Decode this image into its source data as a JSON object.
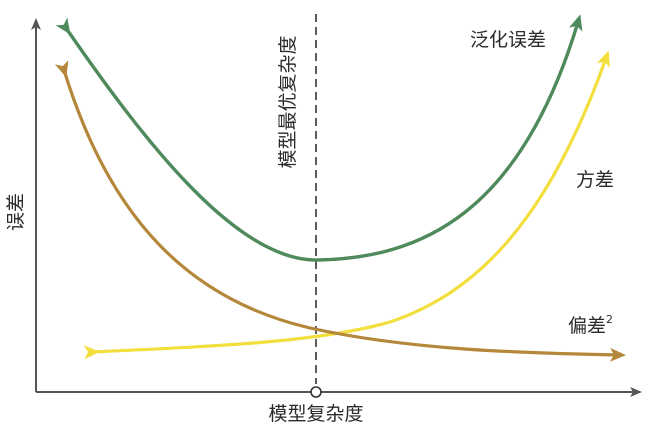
{
  "labels": {
    "y_axis": "误差",
    "x_axis": "模型复杂度",
    "optimal": "模型最优复杂度",
    "generalization": "泛化误差",
    "variance": "方差",
    "bias": "偏差",
    "bias_superscript": "2"
  },
  "colors": {
    "generalization": "#4f8a5c",
    "variance": "#f2df3d",
    "bias": "#b4873a",
    "axis": "#555555",
    "text": "#2b2b2b"
  }
}
